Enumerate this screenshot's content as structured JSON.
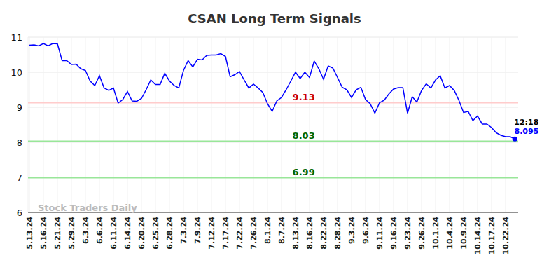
{
  "chart_data": {
    "type": "line",
    "title": "CSAN Long Term Signals",
    "watermark": "Stock Traders Daily",
    "categories": [
      "5.13.24",
      null,
      null,
      "5.16.24",
      null,
      null,
      "5.21.24",
      null,
      null,
      "5.29.24",
      null,
      null,
      "6.3.24",
      null,
      null,
      "6.6.24",
      null,
      null,
      "6.11.24",
      null,
      null,
      "6.14.24",
      null,
      null,
      "6.20.24",
      null,
      null,
      "6.25.24",
      null,
      null,
      "6.28.24",
      null,
      null,
      "7.3.24",
      null,
      null,
      "7.9.24",
      null,
      null,
      "7.12.24",
      null,
      null,
      "7.17.24",
      null,
      null,
      "7.22.24",
      null,
      null,
      "7.26.24",
      null,
      null,
      "8.1.24",
      null,
      null,
      "8.7.24",
      null,
      null,
      "8.13.24",
      null,
      null,
      "8.16.24",
      null,
      null,
      "8.22.24",
      null,
      null,
      "8.28.24",
      null,
      null,
      "9.3.24",
      null,
      null,
      "9.6.24",
      null,
      null,
      "9.11.24",
      null,
      null,
      "9.16.24",
      null,
      null,
      "9.23.24",
      null,
      null,
      "9.26.24",
      null,
      null,
      "10.1.24",
      null,
      null,
      "10.4.24",
      null,
      null,
      "10.9.24",
      null,
      null,
      "10.14.24",
      null,
      null,
      "10.17.24",
      null,
      null,
      "10.22.24",
      null,
      null
    ],
    "series": [
      {
        "name": "CSAN",
        "color": "#0000ff",
        "values": [
          10.77,
          10.78,
          10.75,
          10.82,
          10.75,
          10.82,
          10.81,
          10.33,
          10.33,
          10.22,
          10.23,
          10.1,
          10.05,
          9.75,
          9.62,
          9.9,
          9.55,
          9.48,
          9.55,
          9.12,
          9.22,
          9.45,
          9.18,
          9.17,
          9.25,
          9.5,
          9.78,
          9.65,
          9.65,
          9.97,
          9.75,
          9.62,
          9.55,
          10.05,
          10.33,
          10.15,
          10.37,
          10.35,
          10.48,
          10.49,
          10.49,
          10.53,
          10.45,
          9.87,
          9.93,
          10.02,
          9.78,
          9.55,
          9.66,
          9.55,
          9.42,
          9.1,
          8.88,
          9.18,
          9.28,
          9.5,
          9.75,
          10.0,
          9.82,
          10.0,
          9.85,
          10.32,
          10.1,
          9.8,
          10.18,
          10.12,
          9.85,
          9.57,
          9.5,
          9.28,
          9.5,
          9.57,
          9.22,
          9.1,
          8.83,
          9.13,
          9.2,
          9.38,
          9.52,
          9.56,
          9.56,
          8.83,
          9.3,
          9.15,
          9.48,
          9.67,
          9.55,
          9.78,
          9.9,
          9.55,
          9.62,
          9.48,
          9.2,
          8.85,
          8.88,
          8.62,
          8.75,
          8.52,
          8.52,
          8.42,
          8.27,
          8.2,
          8.16,
          8.16,
          8.095
        ]
      }
    ],
    "reference_lines": [
      {
        "value": 9.13,
        "color": "#cc0000"
      },
      {
        "value": 8.03,
        "color": "#006600"
      },
      {
        "value": 6.99,
        "color": "#006600"
      }
    ],
    "last_time": "12:18",
    "ylim": [
      6,
      11
    ],
    "yticks": [
      6,
      7,
      8,
      9,
      10,
      11
    ],
    "grid": true
  }
}
